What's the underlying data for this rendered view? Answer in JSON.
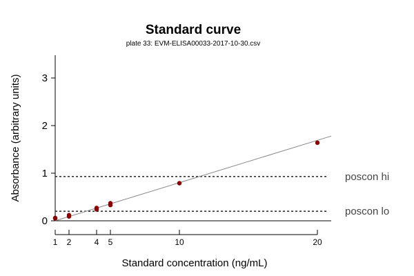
{
  "chart_data": {
    "type": "scatter",
    "title": "Standard curve",
    "subtitle": "plate 33: EVM-ELISA00033-2017-10-30.csv",
    "xlabel": "Standard concentration (ng/mL)",
    "ylabel": "Absorbance (arbitrary units)",
    "xlim": [
      0,
      21
    ],
    "ylim": [
      0,
      3.5
    ],
    "xticks": [
      1,
      2,
      4,
      5,
      10,
      20
    ],
    "yticks": [
      0,
      1,
      2,
      3
    ],
    "grid": false,
    "point_color": "#8b0000",
    "points": [
      {
        "x": 1,
        "y": 0.05
      },
      {
        "x": 1,
        "y": 0.06
      },
      {
        "x": 2,
        "y": 0.09
      },
      {
        "x": 2,
        "y": 0.12
      },
      {
        "x": 4,
        "y": 0.24
      },
      {
        "x": 4,
        "y": 0.27
      },
      {
        "x": 5,
        "y": 0.33
      },
      {
        "x": 5,
        "y": 0.37
      },
      {
        "x": 10,
        "y": 0.79
      },
      {
        "x": 20,
        "y": 1.64
      }
    ],
    "fit_line": {
      "x": [
        1,
        21
      ],
      "y": [
        0.0,
        1.78
      ],
      "color": "#888888"
    },
    "reference_lines": [
      {
        "label": "poscon hi",
        "y": 0.93
      },
      {
        "label": "poscon lo",
        "y": 0.2
      }
    ]
  }
}
